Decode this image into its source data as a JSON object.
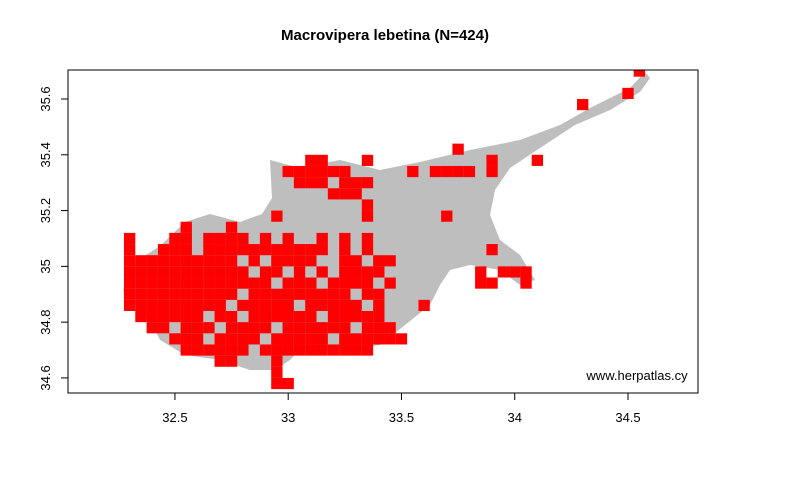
{
  "chart_data": {
    "type": "grid-map",
    "title": "Macrovipera lebetina (N=424)",
    "annotation": "www.herpatlas.cy",
    "color": "#ff0000",
    "cell_width": 0.05,
    "cell_height": 0.04,
    "xlim": [
      32.028,
      34.809
    ],
    "ylim": [
      34.546,
      35.704
    ],
    "xticks": [
      32.5,
      33.0,
      33.5,
      34.0,
      34.5
    ],
    "yticks": [
      34.6,
      34.8,
      35.0,
      35.2,
      35.4,
      35.6
    ],
    "rows": [
      {
        "lat": 34.58,
        "lon": [
          32.95,
          33.0
        ]
      },
      {
        "lat": 34.62,
        "lon": [
          32.95
        ]
      },
      {
        "lat": 34.66,
        "lon": [
          32.7,
          32.75,
          32.95
        ]
      },
      {
        "lat": 34.7,
        "lon": [
          32.55,
          32.6,
          32.65,
          32.7,
          32.75,
          32.8,
          32.9,
          32.95,
          33.0,
          33.05,
          33.1,
          33.15,
          33.2,
          33.25,
          33.3,
          33.35
        ]
      },
      {
        "lat": 34.74,
        "lon": [
          32.5,
          32.55,
          32.6,
          32.7,
          32.75,
          32.8,
          32.85,
          32.95,
          33.0,
          33.05,
          33.1,
          33.15,
          33.25,
          33.3,
          33.35,
          33.4,
          33.45,
          33.5
        ]
      },
      {
        "lat": 34.78,
        "lon": [
          32.4,
          32.45,
          32.55,
          32.6,
          32.65,
          32.75,
          32.8,
          32.85,
          32.9,
          33.0,
          33.05,
          33.1,
          33.15,
          33.2,
          33.25,
          33.35,
          33.4,
          33.45
        ]
      },
      {
        "lat": 34.82,
        "lon": [
          32.35,
          32.4,
          32.45,
          32.5,
          32.55,
          32.6,
          32.7,
          32.75,
          32.85,
          32.9,
          32.95,
          33.0,
          33.05,
          33.1,
          33.2,
          33.25,
          33.3,
          33.35,
          33.4
        ]
      },
      {
        "lat": 34.86,
        "lon": [
          32.3,
          32.35,
          32.4,
          32.45,
          32.5,
          32.55,
          32.6,
          32.65,
          32.7,
          32.8,
          32.85,
          32.9,
          32.95,
          33.0,
          33.1,
          33.15,
          33.2,
          33.25,
          33.3,
          33.4,
          33.6
        ]
      },
      {
        "lat": 34.9,
        "lon": [
          32.3,
          32.35,
          32.4,
          32.45,
          32.5,
          32.55,
          32.6,
          32.65,
          32.7,
          32.75,
          32.85,
          32.9,
          32.95,
          33.0,
          33.05,
          33.1,
          33.15,
          33.2,
          33.25,
          33.35,
          33.4
        ]
      },
      {
        "lat": 34.94,
        "lon": [
          32.3,
          32.35,
          32.4,
          32.45,
          32.5,
          32.55,
          32.6,
          32.65,
          32.7,
          32.75,
          32.8,
          32.85,
          32.9,
          33.0,
          33.05,
          33.1,
          33.2,
          33.25,
          33.3,
          33.35,
          33.45,
          33.85,
          33.9,
          34.05
        ]
      },
      {
        "lat": 34.98,
        "lon": [
          32.3,
          32.35,
          32.4,
          32.45,
          32.5,
          32.55,
          32.6,
          32.65,
          32.7,
          32.75,
          32.8,
          32.9,
          32.95,
          33.05,
          33.15,
          33.25,
          33.3,
          33.35,
          33.4,
          33.85,
          33.95,
          34.0,
          34.05
        ]
      },
      {
        "lat": 35.02,
        "lon": [
          32.3,
          32.35,
          32.4,
          32.45,
          32.5,
          32.55,
          32.6,
          32.65,
          32.7,
          32.75,
          32.85,
          32.95,
          33.0,
          33.05,
          33.1,
          33.25,
          33.3,
          33.4,
          33.45
        ]
      },
      {
        "lat": 35.06,
        "lon": [
          32.3,
          32.45,
          32.5,
          32.55,
          32.65,
          32.7,
          32.75,
          32.8,
          32.85,
          32.9,
          32.95,
          33.0,
          33.05,
          33.1,
          33.15,
          33.25,
          33.35,
          33.9
        ]
      },
      {
        "lat": 35.1,
        "lon": [
          32.3,
          32.5,
          32.55,
          32.65,
          32.7,
          32.75,
          32.8,
          32.9,
          33.0,
          33.15,
          33.25,
          33.35
        ]
      },
      {
        "lat": 35.14,
        "lon": [
          32.55,
          32.75
        ]
      },
      {
        "lat": 35.18,
        "lon": [
          32.95,
          33.35,
          33.7
        ]
      },
      {
        "lat": 35.22,
        "lon": [
          33.35
        ]
      },
      {
        "lat": 35.26,
        "lon": [
          33.2,
          33.25,
          33.3
        ]
      },
      {
        "lat": 35.3,
        "lon": [
          33.05,
          33.1,
          33.15,
          33.25,
          33.3,
          33.35
        ]
      },
      {
        "lat": 35.34,
        "lon": [
          33.0,
          33.05,
          33.1,
          33.15,
          33.2,
          33.25,
          33.55,
          33.65,
          33.7,
          33.75,
          33.8,
          33.9
        ]
      },
      {
        "lat": 35.38,
        "lon": [
          33.1,
          33.15,
          33.35,
          33.9,
          34.1
        ]
      },
      {
        "lat": 35.42,
        "lon": [
          33.75
        ]
      },
      {
        "lat": 35.58,
        "lon": [
          34.3
        ]
      },
      {
        "lat": 35.62,
        "lon": [
          34.5
        ]
      },
      {
        "lat": 35.7,
        "lon": [
          34.55
        ]
      }
    ]
  }
}
